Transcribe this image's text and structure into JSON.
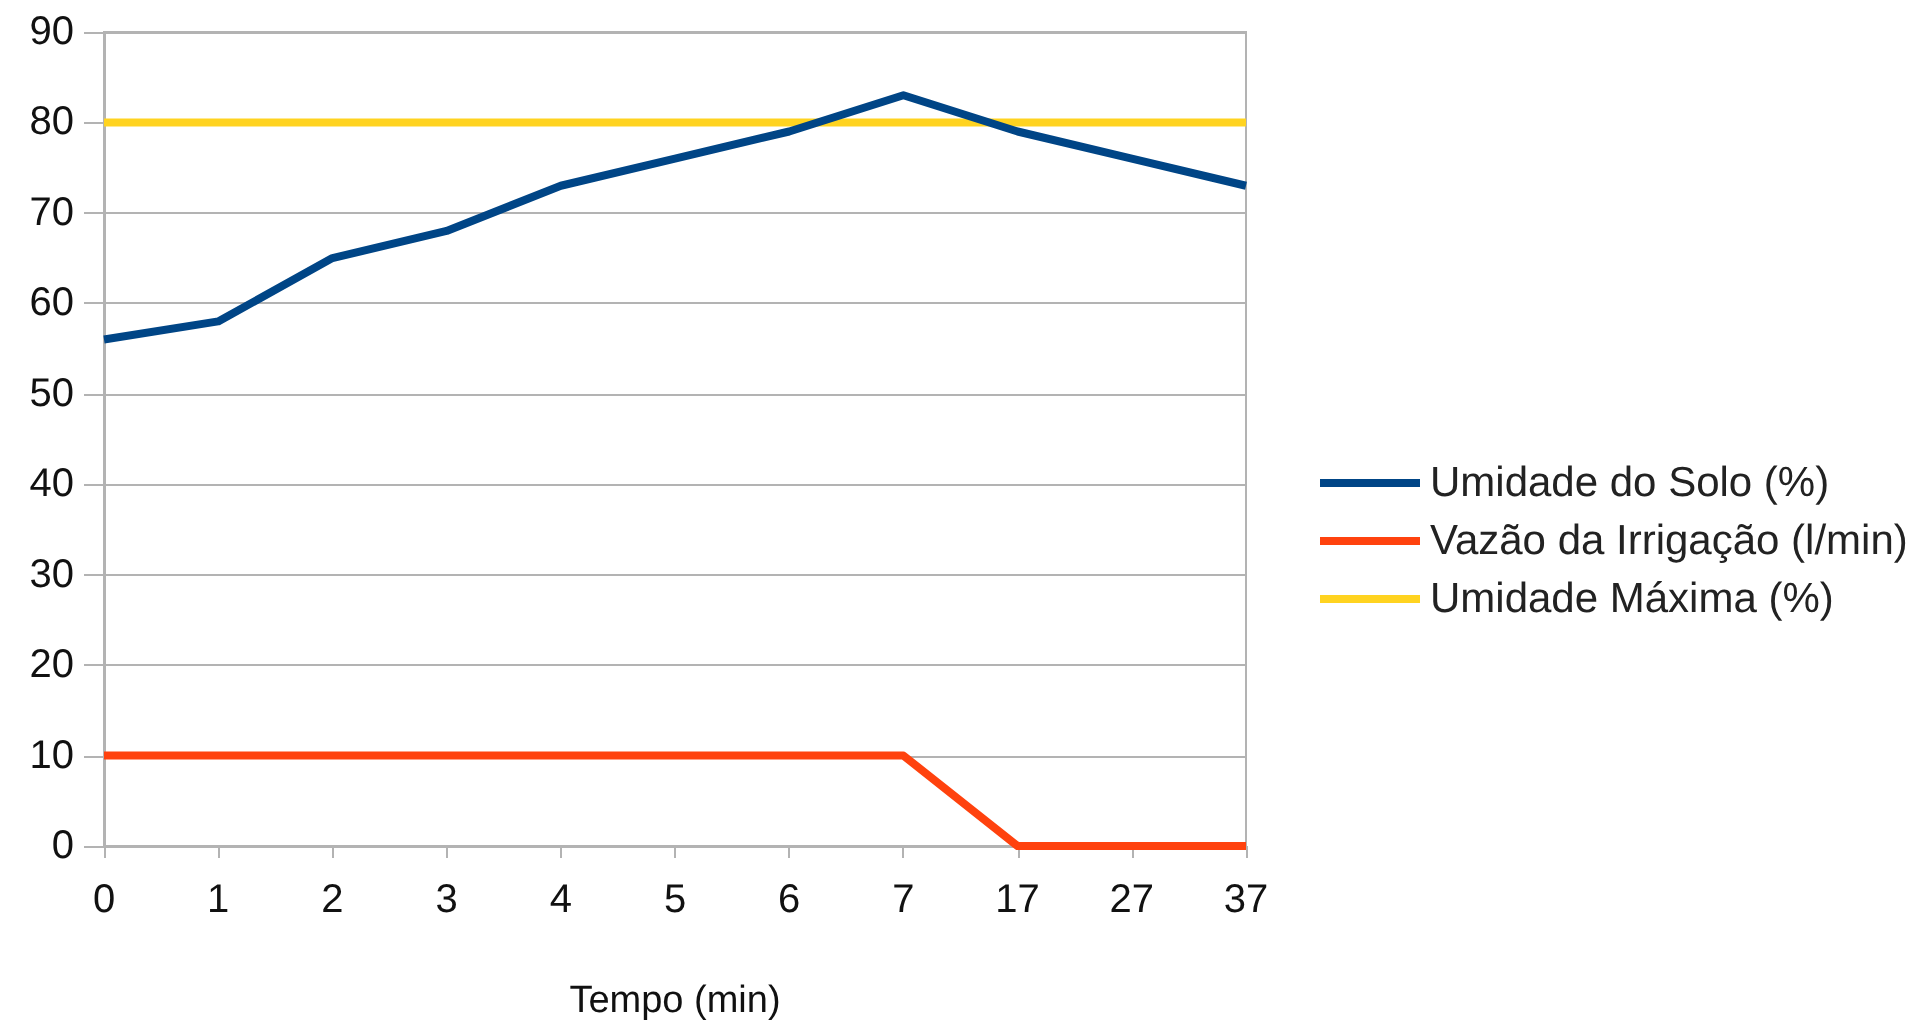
{
  "chart_data": {
    "type": "line",
    "xlabel": "Tempo (min)",
    "categories": [
      "0",
      "1",
      "2",
      "3",
      "4",
      "5",
      "6",
      "7",
      "17",
      "27",
      "37"
    ],
    "series": [
      {
        "name": "Umidade do Solo (%)",
        "color": "#004586",
        "values": [
          56,
          58,
          65,
          68,
          73,
          76,
          79,
          83,
          79,
          76,
          73
        ]
      },
      {
        "name": "Vazão da Irrigação (l/min)",
        "color": "#ff420e",
        "values": [
          10,
          10,
          10,
          10,
          10,
          10,
          10,
          10,
          0,
          0,
          0
        ]
      },
      {
        "name": "Umidade Máxima (%)",
        "color": "#ffd320",
        "values": [
          80,
          80,
          80,
          80,
          80,
          80,
          80,
          80,
          80,
          80,
          80
        ]
      }
    ],
    "ylim": [
      0,
      90
    ],
    "yticks": [
      0,
      10,
      20,
      30,
      40,
      50,
      60,
      70,
      80,
      90
    ],
    "grid": "y",
    "legend": "right",
    "marker": "none",
    "line_style": "solid"
  }
}
